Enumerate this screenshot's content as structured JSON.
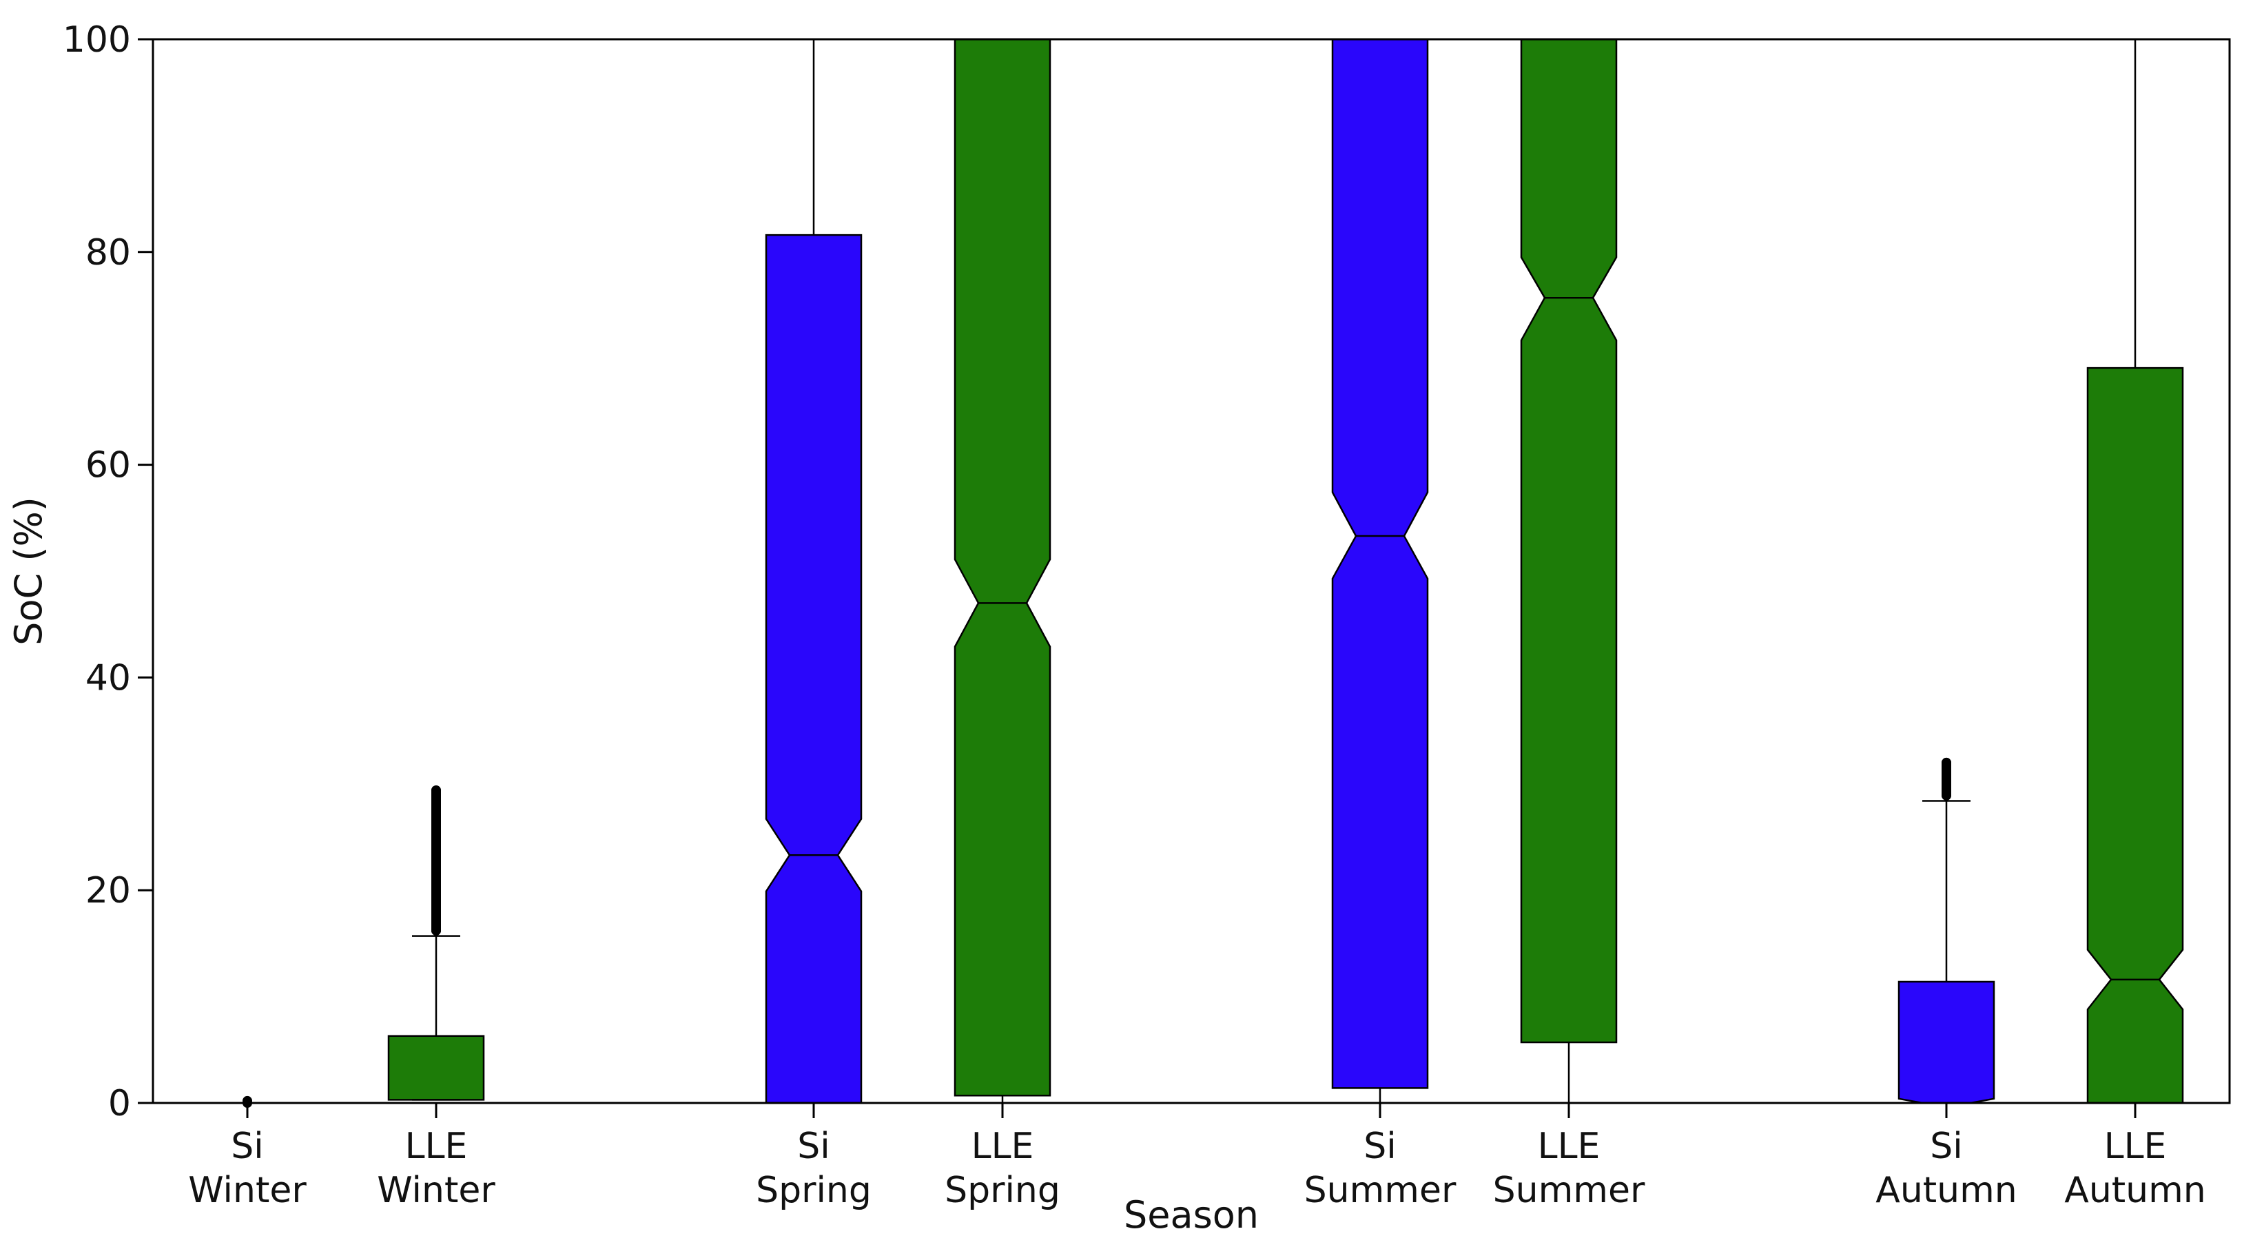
{
  "chart_data": {
    "type": "boxplot",
    "title": "",
    "xlabel": "Season",
    "ylabel": "SoC (%)",
    "ylim": [
      0,
      100
    ],
    "yticks": [
      0,
      20,
      40,
      60,
      80,
      100
    ],
    "notched": true,
    "grid": false,
    "categories": [
      {
        "label": [
          "Si",
          "Winter"
        ]
      },
      {
        "label": [
          "LLE",
          "Winter"
        ]
      },
      {
        "label": [
          "Si",
          "Spring"
        ]
      },
      {
        "label": [
          "LLE",
          "Spring"
        ]
      },
      {
        "label": [
          "Si",
          "Summer"
        ]
      },
      {
        "label": [
          "LLE",
          "Summer"
        ]
      },
      {
        "label": [
          "Si",
          "Autumn"
        ]
      },
      {
        "label": [
          "LLE",
          "Autumn"
        ]
      }
    ],
    "colors": {
      "Si": "#2a06fb",
      "LLE": "#1d7c08"
    },
    "boxes": [
      {
        "series": "Si",
        "x_pos": 1,
        "q1": 0,
        "median": 0,
        "q3": 0,
        "whisker_low": 0,
        "whisker_high": 0,
        "notch": [
          0,
          0
        ],
        "outliers": [
          0,
          0.2
        ]
      },
      {
        "series": "LLE",
        "x_pos": 2,
        "q1": 0.3,
        "median": 0.3,
        "q3": 6.3,
        "whisker_low": 0.3,
        "whisker_high": 15.7,
        "notch": [
          0.3,
          0.3
        ],
        "outliers": [
          16.2,
          18.5,
          21,
          23.5,
          26,
          28.2,
          29.4
        ]
      },
      {
        "series": "Si",
        "x_pos": 4,
        "q1": 0,
        "median": 23.3,
        "q3": 81.6,
        "whisker_low": 0,
        "whisker_high": 100,
        "notch": [
          19.9,
          26.7
        ],
        "outliers": []
      },
      {
        "series": "LLE",
        "x_pos": 5,
        "q1": 0.7,
        "median": 47,
        "q3": 100,
        "whisker_low": 0,
        "whisker_high": 100,
        "notch": [
          42.9,
          51.1
        ],
        "outliers": []
      },
      {
        "series": "Si",
        "x_pos": 7,
        "q1": 1.4,
        "median": 53.3,
        "q3": 100,
        "whisker_low": 0,
        "whisker_high": 100,
        "notch": [
          49.3,
          57.4
        ],
        "outliers": []
      },
      {
        "series": "LLE",
        "x_pos": 8,
        "q1": 5.7,
        "median": 75.7,
        "q3": 100,
        "whisker_low": 0,
        "whisker_high": 100,
        "notch": [
          71.7,
          79.5
        ],
        "outliers": []
      },
      {
        "series": "Si",
        "x_pos": 10,
        "q1": 0,
        "median": 0,
        "q3": 11.4,
        "whisker_low": 0,
        "whisker_high": 28.4,
        "notch": [
          0,
          0.4
        ],
        "outliers": [
          28.9,
          30,
          31,
          32
        ]
      },
      {
        "series": "LLE",
        "x_pos": 11,
        "q1": 0,
        "median": 11.6,
        "q3": 69.1,
        "whisker_low": 0,
        "whisker_high": 100,
        "notch": [
          8.8,
          14.4
        ],
        "outliers": []
      }
    ]
  }
}
